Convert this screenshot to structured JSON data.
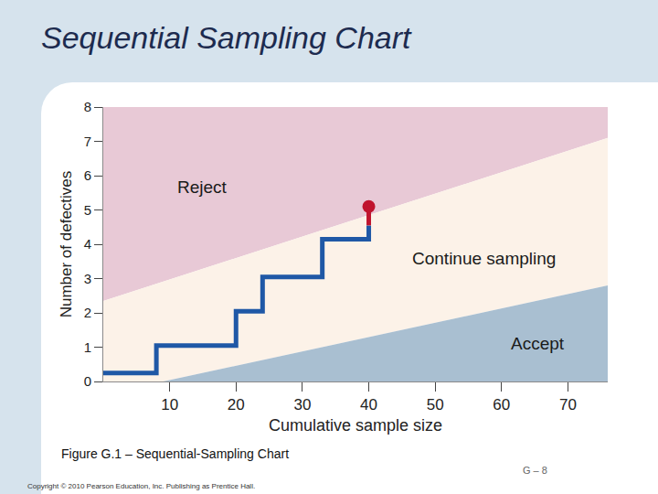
{
  "chart_data": {
    "type": "line",
    "title": "Sequential Sampling Chart",
    "x_label": "Cumulative sample size",
    "y_label": "Number of defectives",
    "xlim": [
      0,
      76
    ],
    "xticks": [
      10,
      20,
      30,
      40,
      50,
      60,
      70
    ],
    "ylim": [
      0,
      8
    ],
    "yticks": [
      0,
      1,
      2,
      3,
      4,
      5,
      6,
      7,
      8
    ],
    "grid": false,
    "series": [
      {
        "name": "Reject",
        "type": "area",
        "color": "#e8c9d6",
        "x": [
          0,
          76,
          76,
          0
        ],
        "values": [
          2.35,
          7.1,
          8,
          8
        ]
      },
      {
        "name": "Continue sampling",
        "type": "area",
        "color": "#fcf2e8",
        "x": [
          0,
          76,
          76,
          9,
          0
        ],
        "values": [
          2.35,
          7.1,
          2.8,
          0,
          0
        ]
      },
      {
        "name": "Accept",
        "type": "area",
        "color": "#a9bfd1",
        "x": [
          9,
          76,
          76
        ],
        "values": [
          0,
          2.8,
          0
        ]
      },
      {
        "type": "line",
        "color": "#1f58a6",
        "line_style": "solid",
        "x": [
          0,
          8,
          8,
          20,
          20,
          24,
          24,
          33,
          33,
          40,
          40
        ],
        "values": [
          0.25,
          0.25,
          1.05,
          1.05,
          2.05,
          2.05,
          3.05,
          3.05,
          4.15,
          4.15,
          4.55
        ]
      },
      {
        "type": "line",
        "color": "#c0142e",
        "line_style": "solid",
        "x": [
          40,
          40
        ],
        "values": [
          4.55,
          5.1
        ]
      },
      {
        "type": "scatter",
        "color": "#c0142e",
        "marker": "circle",
        "x": [
          40
        ],
        "values": [
          5.1
        ]
      }
    ],
    "caption": "Figure G.1 – Sequential-Sampling Chart",
    "page_number": "G – 8",
    "copyright": "Copyright © 2010 Pearson Education, Inc. Publishing as Prentice Hall."
  }
}
